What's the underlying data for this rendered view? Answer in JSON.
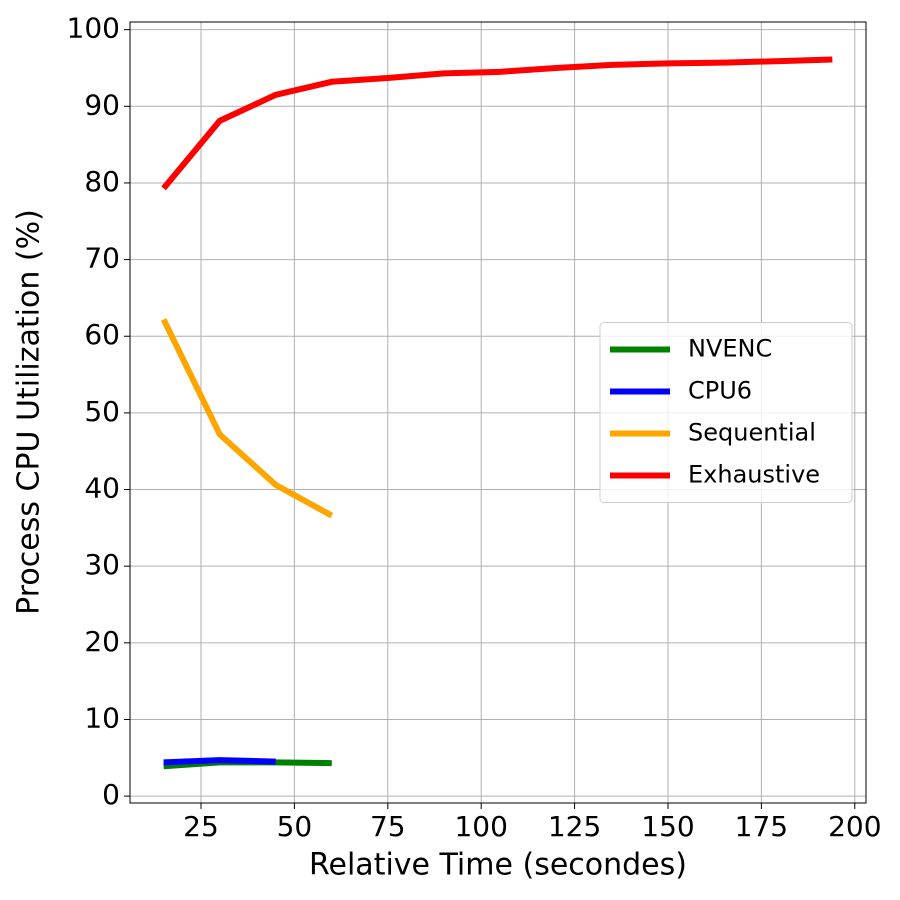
{
  "chart_data": {
    "type": "line",
    "xlabel": "Relative Time (secondes)",
    "ylabel": "Process CPU Utilization (%)",
    "xlim": [
      6,
      203
    ],
    "ylim": [
      -0.9,
      101
    ],
    "xticks": [
      25,
      50,
      75,
      100,
      125,
      150,
      175,
      200
    ],
    "yticks": [
      0,
      10,
      20,
      30,
      40,
      50,
      60,
      70,
      80,
      90,
      100
    ],
    "grid": true,
    "legend": "center right",
    "series": [
      {
        "name": "NVENC",
        "color": "#008000",
        "x": [
          15,
          30,
          45,
          60
        ],
        "values": [
          3.9,
          4.4,
          4.4,
          4.3
        ]
      },
      {
        "name": "CPU6",
        "color": "#0000ff",
        "x": [
          15,
          30,
          45
        ],
        "values": [
          4.4,
          4.7,
          4.5
        ]
      },
      {
        "name": "Sequential",
        "color": "#ffa500",
        "x": [
          15,
          30,
          45,
          60
        ],
        "values": [
          62.2,
          47.2,
          40.6,
          36.6
        ]
      },
      {
        "name": "Exhaustive",
        "color": "#ff0000",
        "x": [
          15,
          30,
          45,
          60,
          75,
          90,
          105,
          120,
          135,
          150,
          165,
          180,
          194
        ],
        "values": [
          79.3,
          88.1,
          91.5,
          93.2,
          93.7,
          94.3,
          94.5,
          95.0,
          95.4,
          95.6,
          95.7,
          95.9,
          96.1
        ]
      }
    ]
  }
}
